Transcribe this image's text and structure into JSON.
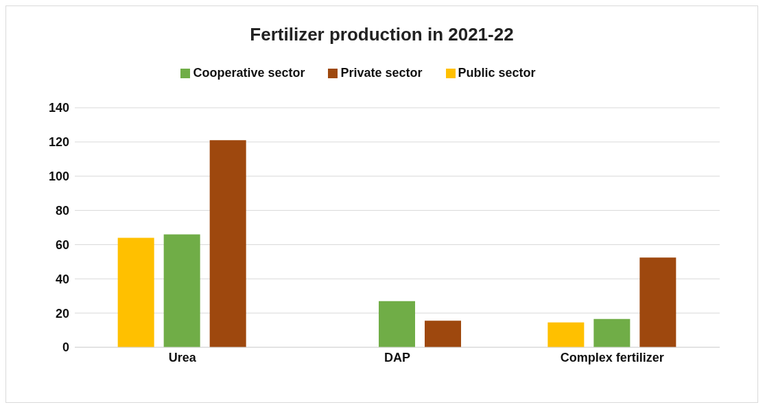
{
  "chart_data": {
    "type": "bar",
    "title": "Fertilizer production in 2021-22",
    "categories": [
      "Urea",
      "DAP",
      "Complex fertilizer"
    ],
    "series": [
      {
        "name": "Public sector",
        "color": "#ffc000",
        "values": [
          64,
          0,
          14.5
        ]
      },
      {
        "name": "Cooperative sector",
        "color": "#70ad47",
        "values": [
          66,
          27,
          16.5
        ]
      },
      {
        "name": "Private sector",
        "color": "#9e480e",
        "values": [
          121,
          15.5,
          52.5
        ]
      }
    ],
    "ylim": [
      0,
      140
    ],
    "yticks": [
      0,
      20,
      40,
      60,
      80,
      100,
      120,
      140
    ],
    "grid": "y",
    "legend": "top"
  }
}
